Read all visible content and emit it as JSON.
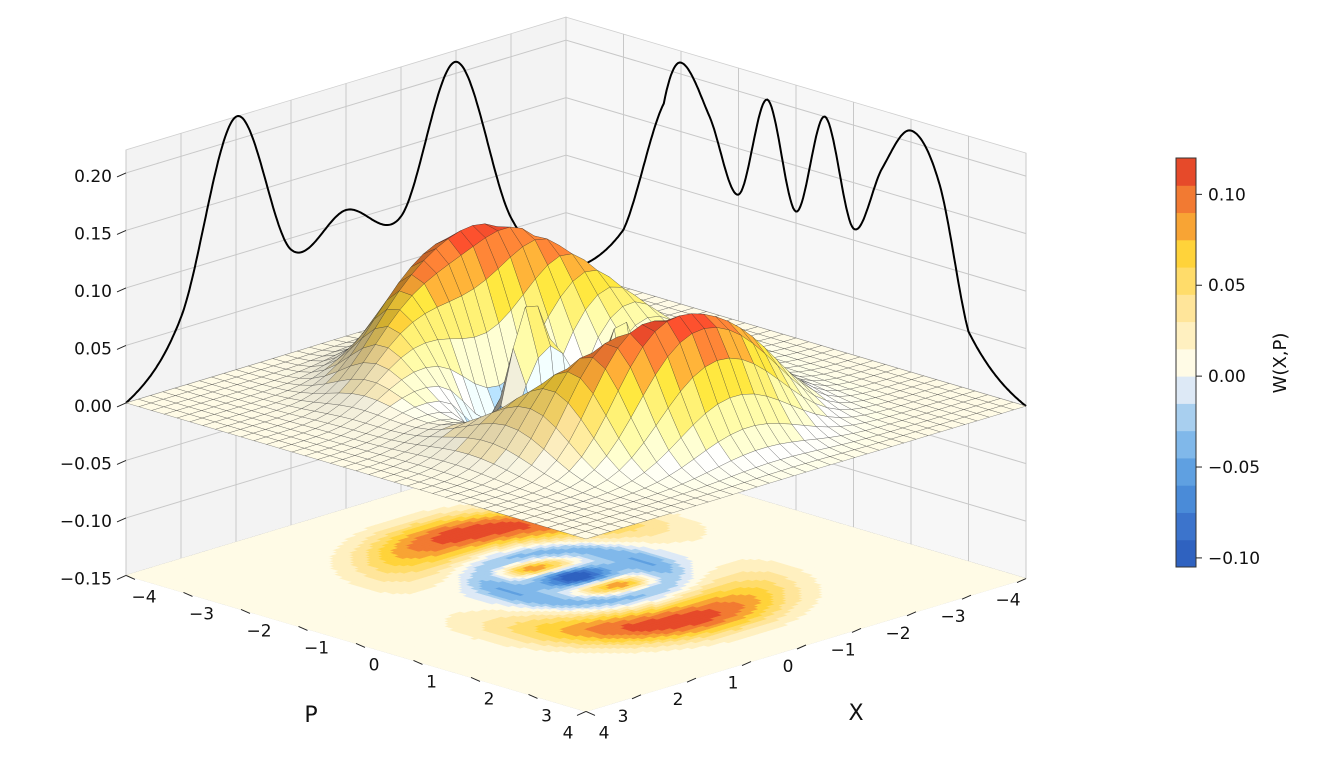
{
  "chart_data": {
    "type": "surface3d",
    "title": "",
    "xlabel": "X",
    "ylabel": "P",
    "zlabel": "",
    "x_range": [
      -4,
      4
    ],
    "y_range": [
      -4,
      4
    ],
    "z_range": [
      -0.15,
      0.22
    ],
    "x_ticks": [
      "−4",
      "−3",
      "−2",
      "−1",
      "0",
      "1",
      "2",
      "3",
      "4"
    ],
    "y_ticks": [
      "−4",
      "−3",
      "−2",
      "−1",
      "0",
      "1",
      "2",
      "3",
      "4"
    ],
    "z_ticks": [
      "−0.15",
      "−0.10",
      "−0.05",
      "0.00",
      "0.05",
      "0.10",
      "0.15",
      "0.20"
    ],
    "z_tick_values": [
      -0.15,
      -0.1,
      -0.05,
      0.0,
      0.05,
      0.1,
      0.15,
      0.2
    ],
    "grid": true,
    "colorbar": {
      "label": "W(X,P)",
      "ticks": [
        "−0.10",
        "0.00",
        "0.05",
        "0.10"
      ],
      "tick_values": [
        -0.1,
        0.0,
        0.05,
        0.1
      ],
      "extra_ticks": [
        "−0.05"
      ],
      "extra_tick_values": [
        -0.05
      ],
      "range": [
        -0.105,
        0.12
      ],
      "colors": [
        "#2f62c0",
        "#3c74cc",
        "#4a8bd8",
        "#5fa0e1",
        "#80b8ea",
        "#a8cfef",
        "#dde9f6",
        "#fffbe6",
        "#fff0c0",
        "#ffe59a",
        "#ffdc6a",
        "#ffd33a",
        "#f8a434",
        "#f27a32",
        "#e64a2a"
      ]
    },
    "marginal_X": {
      "name": "",
      "x": [
        -4.0,
        -3.0,
        -2.3,
        -2.0,
        -1.5,
        -1.0,
        -0.5,
        0.0,
        0.5,
        1.0,
        1.5,
        2.0,
        2.5,
        3.0,
        4.0
      ],
      "values": [
        0.0,
        0.05,
        0.17,
        0.21,
        0.17,
        0.11,
        0.2,
        0.11,
        0.2,
        0.11,
        0.17,
        0.21,
        0.17,
        0.05,
        0.0
      ]
    },
    "marginal_P": {
      "name": "",
      "x": [
        -4.0,
        -3.0,
        -2.0,
        -1.0,
        0.0,
        1.0,
        2.0,
        3.0,
        4.0
      ],
      "values": [
        0.0,
        0.06,
        0.21,
        0.09,
        0.11,
        0.09,
        0.22,
        0.06,
        0.0
      ]
    }
  }
}
